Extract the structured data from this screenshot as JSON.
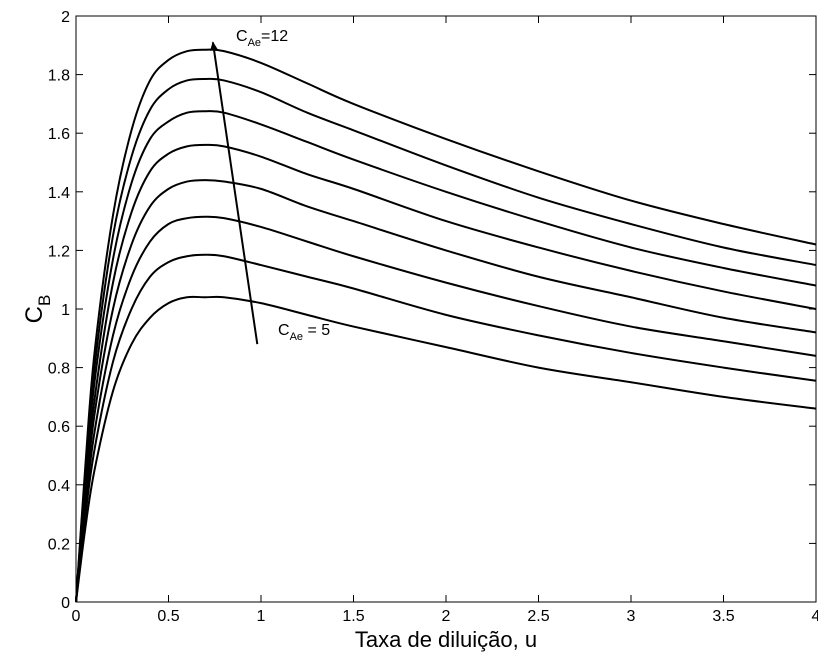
{
  "chart_data": {
    "type": "line",
    "title": "",
    "xlabel": "Taxa de diluição, u",
    "ylabel": {
      "main": "C",
      "sub": "B"
    },
    "xlim": [
      0,
      4
    ],
    "ylim": [
      0,
      2
    ],
    "xticks": [
      0,
      0.5,
      1,
      1.5,
      2,
      2.5,
      3,
      3.5,
      4
    ],
    "xtick_labels": [
      "0",
      "0.5",
      "1",
      "1.5",
      "2",
      "2.5",
      "3",
      "3.5",
      "4"
    ],
    "yticks": [
      0,
      0.2,
      0.4,
      0.6,
      0.8,
      1,
      1.2,
      1.4,
      1.6,
      1.8,
      2
    ],
    "ytick_labels": [
      "0",
      "0.2",
      "0.4",
      "0.6",
      "0.8",
      "1",
      "1.2",
      "1.4",
      "1.6",
      "1.8",
      "2"
    ],
    "grid": false,
    "legend": "none",
    "line_color": "#000000",
    "x": [
      0,
      0.05,
      0.1,
      0.2,
      0.3,
      0.4,
      0.5,
      0.6,
      0.7,
      0.8,
      1.0,
      1.25,
      1.5,
      2.0,
      2.5,
      3.0,
      3.5,
      4.0
    ],
    "series": [
      {
        "values": [
          0,
          0.25,
          0.45,
          0.72,
          0.88,
          0.97,
          1.02,
          1.04,
          1.04,
          1.04,
          1.02,
          0.98,
          0.94,
          0.87,
          0.8,
          0.75,
          0.7,
          0.66
        ]
      },
      {
        "values": [
          0,
          0.29,
          0.52,
          0.82,
          1.0,
          1.11,
          1.16,
          1.18,
          1.185,
          1.18,
          1.15,
          1.11,
          1.07,
          0.98,
          0.91,
          0.85,
          0.8,
          0.755
        ]
      },
      {
        "values": [
          0,
          0.32,
          0.58,
          0.91,
          1.11,
          1.23,
          1.29,
          1.31,
          1.315,
          1.31,
          1.28,
          1.23,
          1.18,
          1.09,
          1.01,
          0.94,
          0.89,
          0.84
        ]
      },
      {
        "values": [
          0,
          0.35,
          0.64,
          1.0,
          1.22,
          1.35,
          1.41,
          1.435,
          1.44,
          1.435,
          1.41,
          1.35,
          1.3,
          1.2,
          1.11,
          1.04,
          0.97,
          0.92
        ]
      },
      {
        "values": [
          0,
          0.38,
          0.69,
          1.09,
          1.33,
          1.47,
          1.53,
          1.555,
          1.56,
          1.555,
          1.52,
          1.46,
          1.41,
          1.3,
          1.21,
          1.13,
          1.06,
          1.0
        ]
      },
      {
        "values": [
          0,
          0.41,
          0.75,
          1.17,
          1.43,
          1.58,
          1.64,
          1.67,
          1.675,
          1.67,
          1.63,
          1.57,
          1.51,
          1.4,
          1.3,
          1.21,
          1.14,
          1.08
        ]
      },
      {
        "values": [
          0,
          0.44,
          0.8,
          1.25,
          1.52,
          1.68,
          1.75,
          1.78,
          1.785,
          1.78,
          1.74,
          1.67,
          1.61,
          1.49,
          1.38,
          1.29,
          1.21,
          1.15
        ]
      },
      {
        "values": [
          0,
          0.46,
          0.85,
          1.32,
          1.61,
          1.78,
          1.85,
          1.88,
          1.885,
          1.88,
          1.84,
          1.77,
          1.7,
          1.58,
          1.47,
          1.37,
          1.29,
          1.22
        ]
      }
    ],
    "annotations": {
      "top": {
        "main": "C",
        "sub": "Ae",
        "rest": "=12"
      },
      "bottom": {
        "main": "C",
        "sub": "Ae",
        "rest": " = 5"
      },
      "arrow": {
        "from": [
          0.98,
          0.88
        ],
        "to": [
          0.74,
          1.91
        ]
      }
    }
  }
}
